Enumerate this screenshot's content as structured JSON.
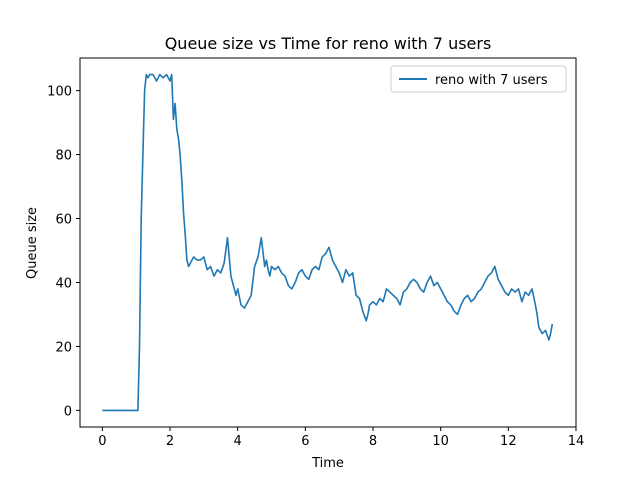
{
  "chart_data": {
    "type": "line",
    "title": "Queue size vs Time for reno with 7 users",
    "xlabel": "Time",
    "ylabel": "Queue size",
    "xlim": [
      -0.66,
      14.0
    ],
    "ylim": [
      -5.2,
      110.2
    ],
    "xticks": [
      0,
      2,
      4,
      6,
      8,
      10,
      12,
      14
    ],
    "yticks": [
      0,
      20,
      40,
      60,
      80,
      100
    ],
    "grid": false,
    "legend_position": "top-right",
    "series": [
      {
        "name": "reno with 7 users",
        "color": "#1f77b4",
        "x": [
          0,
          0.5,
          1.0,
          1.05,
          1.1,
          1.15,
          1.2,
          1.25,
          1.3,
          1.35,
          1.4,
          1.5,
          1.6,
          1.7,
          1.8,
          1.9,
          2.0,
          2.05,
          2.1,
          2.15,
          2.2,
          2.25,
          2.3,
          2.35,
          2.4,
          2.45,
          2.5,
          2.55,
          2.6,
          2.7,
          2.8,
          2.9,
          3.0,
          3.1,
          3.2,
          3.3,
          3.4,
          3.5,
          3.6,
          3.7,
          3.8,
          3.85,
          3.9,
          3.95,
          4.0,
          4.1,
          4.2,
          4.3,
          4.4,
          4.5,
          4.6,
          4.7,
          4.8,
          4.85,
          4.9,
          4.95,
          5.0,
          5.1,
          5.2,
          5.3,
          5.4,
          5.5,
          5.6,
          5.7,
          5.8,
          5.9,
          6.0,
          6.1,
          6.2,
          6.3,
          6.4,
          6.5,
          6.6,
          6.7,
          6.8,
          6.9,
          7.0,
          7.1,
          7.2,
          7.3,
          7.4,
          7.5,
          7.6,
          7.7,
          7.8,
          7.85,
          7.9,
          8.0,
          8.1,
          8.2,
          8.3,
          8.4,
          8.5,
          8.6,
          8.7,
          8.8,
          8.9,
          9.0,
          9.1,
          9.2,
          9.3,
          9.4,
          9.5,
          9.6,
          9.7,
          9.8,
          9.9,
          10.0,
          10.1,
          10.2,
          10.3,
          10.4,
          10.5,
          10.6,
          10.7,
          10.8,
          10.9,
          11.0,
          11.1,
          11.2,
          11.3,
          11.4,
          11.5,
          11.6,
          11.7,
          11.8,
          11.9,
          12.0,
          12.1,
          12.2,
          12.3,
          12.4,
          12.5,
          12.6,
          12.7,
          12.8,
          12.85,
          12.9,
          13.0,
          13.1,
          13.2,
          13.25,
          13.3
        ],
        "y": [
          0,
          0,
          0,
          0,
          20,
          60,
          80,
          100,
          105,
          104,
          105,
          105,
          103,
          105,
          104,
          105,
          103,
          105,
          91,
          96,
          88,
          85,
          80,
          72,
          62,
          55,
          47,
          45,
          46,
          48,
          47,
          47,
          48,
          44,
          45,
          42,
          44,
          43,
          46,
          54,
          42,
          40,
          38,
          36,
          38,
          33,
          32,
          34,
          36,
          45,
          48,
          54,
          45,
          47,
          44,
          42,
          45,
          44,
          45,
          43,
          42,
          39,
          38,
          40,
          43,
          44,
          42,
          41,
          44,
          45,
          44,
          48,
          49,
          51,
          47,
          45,
          43,
          40,
          44,
          42,
          43,
          36,
          35,
          31,
          28,
          30,
          33,
          34,
          33,
          35,
          34,
          38,
          37,
          36,
          35,
          33,
          37,
          38,
          40,
          41,
          40,
          38,
          37,
          40,
          42,
          39,
          40,
          38,
          36,
          34,
          33,
          31,
          30,
          33,
          35,
          36,
          34,
          35,
          37,
          38,
          40,
          42,
          43,
          45,
          41,
          39,
          37,
          36,
          38,
          37,
          38,
          34,
          37,
          36,
          38,
          33,
          30,
          26,
          24,
          25,
          22,
          24,
          27
        ]
      }
    ]
  }
}
